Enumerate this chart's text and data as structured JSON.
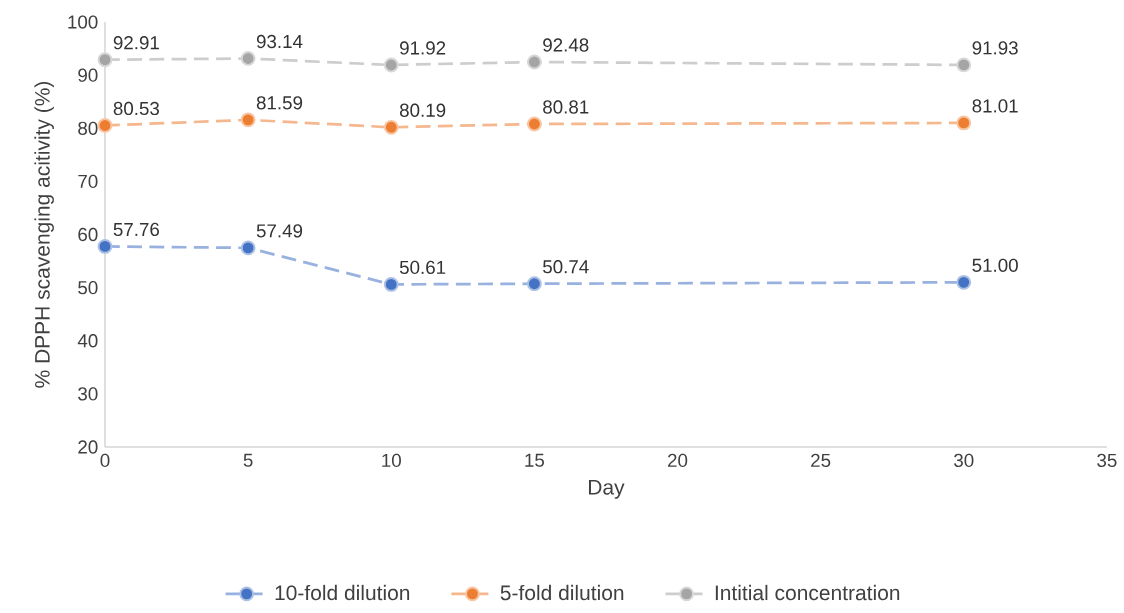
{
  "chart_data": {
    "type": "line",
    "xlabel": "Day",
    "ylabel": "% DPPH scavenging acitivity (%)",
    "x": [
      0,
      5,
      10,
      15,
      30
    ],
    "series": [
      {
        "name": "10-fold dilution",
        "color": "#4472c4",
        "values": [
          57.76,
          57.49,
          50.61,
          50.74,
          51.0
        ],
        "value_labels": [
          "57.76",
          "57.49",
          "50.61",
          "50.74",
          "51.00"
        ]
      },
      {
        "name": "5-fold dilution",
        "color": "#ed7d31",
        "values": [
          80.53,
          81.59,
          80.19,
          80.81,
          81.01
        ],
        "value_labels": [
          "80.53",
          "81.59",
          "80.19",
          "80.81",
          "81.01"
        ]
      },
      {
        "name": "Intitial concentration",
        "color": "#a5a5a5",
        "values": [
          92.91,
          93.14,
          91.92,
          92.48,
          91.93
        ],
        "value_labels": [
          "92.91",
          "93.14",
          "91.92",
          "92.48",
          "91.93"
        ]
      }
    ],
    "xlim": [
      0,
      35
    ],
    "xticks": [
      0,
      5,
      10,
      15,
      20,
      25,
      30,
      35
    ],
    "ylim": [
      20,
      100
    ],
    "yticks": [
      20,
      30,
      40,
      50,
      60,
      70,
      80,
      90,
      100
    ],
    "grid": false,
    "legend": "bottom",
    "marker": "circle",
    "line_style": "dashed"
  }
}
